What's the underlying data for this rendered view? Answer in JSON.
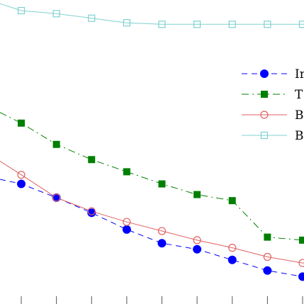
{
  "chart_data": {
    "type": "line",
    "title": "",
    "xlabel": "",
    "ylabel": "",
    "x": [
      1,
      2,
      3,
      4,
      5,
      6,
      7,
      8,
      9
    ],
    "xlim": [
      0.42,
      9.0
    ],
    "ylim": [
      0,
      100
    ],
    "grid": false,
    "legend_position": "right",
    "series": [
      {
        "name": "Ir",
        "color": "#0000ff",
        "line_style": "dashed",
        "marker": "filled-circle",
        "x_start": 0.42,
        "y_start": 41.0,
        "values": [
          39.5,
          35.0,
          30.0,
          24.5,
          20.0,
          18.0,
          14.5,
          11.0,
          9.0
        ]
      },
      {
        "name": "T",
        "color": "#008000",
        "line_style": "dash-dot",
        "marker": "filled-square",
        "x_start": 0.42,
        "y_start": 63.0,
        "values": [
          59.5,
          52.5,
          47.5,
          43.5,
          39.5,
          36.0,
          34.0,
          22.0,
          21.0
        ]
      },
      {
        "name": "B",
        "color": "#e06060",
        "line_style": "solid",
        "marker": "open-circle",
        "x_start": 0.42,
        "y_start": 47.0,
        "values": [
          42.5,
          35.0,
          30.5,
          27.0,
          24.0,
          21.0,
          18.5,
          15.5,
          13.5
        ]
      },
      {
        "name": "B",
        "color": "#80d0d0",
        "line_style": "solid",
        "marker": "open-square",
        "x_start": 0.42,
        "y_start": 98.8,
        "values": [
          96.5,
          95.5,
          94.0,
          92.5,
          92.0,
          92.0,
          92.0,
          92.0,
          92.0
        ]
      }
    ]
  }
}
